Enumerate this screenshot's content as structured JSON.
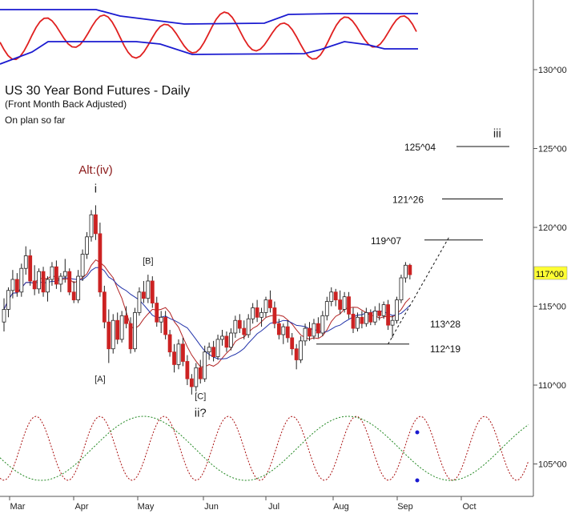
{
  "chart_data": {
    "type": "candlestick",
    "title": "US 30 Year Bond Futures - Daily",
    "subtitle": "(Front Month Back Adjusted)",
    "note": "On plan so far",
    "price_axis": {
      "min": 103,
      "max": 132,
      "ticks": [
        "130^00",
        "125^00",
        "120^00",
        "115^00",
        "110^00",
        "105^00"
      ],
      "tick_values": [
        130,
        125,
        120,
        115,
        110,
        105
      ],
      "current_price_label": "117^00",
      "current_price": 117
    },
    "x_axis": {
      "months": [
        "Mar",
        "Apr",
        "May",
        "Jun",
        "Jul",
        "Aug",
        "Sep",
        "Oct"
      ]
    },
    "wave_labels": [
      {
        "text": "Alt:(iv)",
        "day": 21,
        "price": 123.4,
        "color": "#8b1a1a"
      },
      {
        "text": "i",
        "day": 21,
        "price": 122.2,
        "color": "#222222"
      },
      {
        "text": "[B]",
        "day": 33,
        "price": 117.7,
        "color": "#222222"
      },
      {
        "text": "[A]",
        "day": 22,
        "price": 110.2,
        "color": "#222222"
      },
      {
        "text": "[C]",
        "day": 45,
        "price": 109.1,
        "color": "#222222"
      },
      {
        "text": "ii?",
        "day": 45,
        "price": 108.0,
        "color": "#222222"
      },
      {
        "text": "iii",
        "day": 113,
        "price": 125.7,
        "color": "#222222"
      }
    ],
    "targets": [
      {
        "label": "125^04",
        "value": 125.13
      },
      {
        "label": "121^26",
        "value": 121.8
      },
      {
        "label": "119^07",
        "value": 119.2
      }
    ],
    "support_levels": [
      {
        "label": "113^28",
        "value": 113.9
      },
      {
        "label": "112^19",
        "value": 112.6
      }
    ],
    "candles": [
      [
        0,
        114.0,
        115.5,
        113.4,
        114.8
      ],
      [
        1,
        114.8,
        116.2,
        114.3,
        116.0
      ],
      [
        2,
        116.0,
        117.3,
        115.5,
        116.7
      ],
      [
        3,
        116.7,
        117.1,
        115.6,
        115.9
      ],
      [
        4,
        115.9,
        117.7,
        115.6,
        117.4
      ],
      [
        5,
        117.4,
        118.8,
        117.0,
        118.2
      ],
      [
        6,
        118.2,
        118.6,
        116.3,
        116.6
      ],
      [
        7,
        116.6,
        117.6,
        115.7,
        116.1
      ],
      [
        8,
        116.1,
        117.4,
        115.8,
        117.2
      ],
      [
        9,
        117.2,
        117.5,
        115.6,
        115.9
      ],
      [
        10,
        115.9,
        116.9,
        115.3,
        116.7
      ],
      [
        11,
        116.7,
        117.8,
        116.3,
        117.5
      ],
      [
        12,
        117.5,
        117.9,
        116.1,
        116.4
      ],
      [
        13,
        116.4,
        117.1,
        115.9,
        116.9
      ],
      [
        14,
        116.9,
        118.0,
        116.5,
        117.2
      ],
      [
        15,
        117.2,
        117.4,
        115.7,
        115.9
      ],
      [
        16,
        115.9,
        116.6,
        115.2,
        115.4
      ],
      [
        17,
        115.4,
        117.3,
        115.2,
        116.9
      ],
      [
        18,
        116.9,
        118.6,
        116.6,
        118.3
      ],
      [
        19,
        118.3,
        119.7,
        118.0,
        119.4
      ],
      [
        20,
        119.4,
        121.1,
        119.1,
        120.8
      ],
      [
        21,
        120.8,
        121.4,
        119.2,
        119.6
      ],
      [
        22,
        119.6,
        120.3,
        115.6,
        115.9
      ],
      [
        23,
        115.9,
        116.3,
        113.6,
        114.0
      ],
      [
        24,
        114.0,
        114.8,
        111.4,
        112.3
      ],
      [
        25,
        112.3,
        114.5,
        112.0,
        114.1
      ],
      [
        26,
        114.1,
        114.6,
        112.6,
        112.9
      ],
      [
        27,
        112.9,
        114.7,
        112.7,
        114.4
      ],
      [
        28,
        114.4,
        115.0,
        113.6,
        113.9
      ],
      [
        29,
        113.9,
        114.3,
        112.0,
        112.3
      ],
      [
        30,
        112.3,
        114.9,
        112.1,
        114.6
      ],
      [
        31,
        114.6,
        116.2,
        114.4,
        115.9
      ],
      [
        32,
        115.9,
        116.6,
        115.2,
        115.5
      ],
      [
        33,
        115.5,
        117.0,
        115.2,
        116.6
      ],
      [
        34,
        116.6,
        116.9,
        114.9,
        115.2
      ],
      [
        35,
        115.2,
        115.6,
        113.7,
        114.0
      ],
      [
        36,
        114.0,
        114.7,
        113.3,
        114.3
      ],
      [
        37,
        114.3,
        114.7,
        112.9,
        113.2
      ],
      [
        38,
        113.2,
        113.5,
        111.8,
        112.1
      ],
      [
        39,
        112.1,
        112.6,
        110.8,
        111.3
      ],
      [
        40,
        111.3,
        112.9,
        111.0,
        112.6
      ],
      [
        41,
        112.6,
        113.0,
        111.2,
        111.5
      ],
      [
        42,
        111.5,
        111.9,
        110.0,
        110.4
      ],
      [
        43,
        110.4,
        110.7,
        109.4,
        109.9
      ],
      [
        44,
        109.9,
        111.4,
        109.6,
        111.1
      ],
      [
        45,
        111.1,
        111.6,
        110.1,
        110.4
      ],
      [
        46,
        110.4,
        112.5,
        110.2,
        112.1
      ],
      [
        47,
        112.1,
        112.7,
        111.6,
        112.4
      ],
      [
        48,
        112.4,
        112.8,
        111.5,
        111.8
      ],
      [
        49,
        111.8,
        113.2,
        111.6,
        112.9
      ],
      [
        50,
        112.9,
        113.5,
        112.5,
        113.1
      ],
      [
        51,
        113.1,
        113.4,
        112.1,
        112.4
      ],
      [
        52,
        112.4,
        113.6,
        112.2,
        113.3
      ],
      [
        53,
        113.3,
        114.4,
        113.0,
        114.1
      ],
      [
        54,
        114.1,
        114.5,
        113.3,
        113.6
      ],
      [
        55,
        113.6,
        114.1,
        112.9,
        113.2
      ],
      [
        56,
        113.2,
        114.5,
        113.0,
        114.2
      ],
      [
        57,
        114.2,
        115.2,
        113.9,
        114.9
      ],
      [
        58,
        114.9,
        115.4,
        114.0,
        114.3
      ],
      [
        59,
        114.3,
        114.9,
        113.7,
        114.6
      ],
      [
        60,
        114.6,
        115.6,
        114.3,
        115.4
      ],
      [
        61,
        115.4,
        116.0,
        114.6,
        114.9
      ],
      [
        62,
        114.9,
        115.3,
        113.6,
        113.9
      ],
      [
        63,
        113.9,
        114.2,
        112.9,
        113.2
      ],
      [
        64,
        113.2,
        113.9,
        112.6,
        113.7
      ],
      [
        65,
        113.7,
        114.1,
        112.7,
        113.0
      ],
      [
        66,
        113.0,
        113.3,
        111.9,
        112.3
      ],
      [
        67,
        112.3,
        112.6,
        111.0,
        111.6
      ],
      [
        68,
        111.6,
        113.1,
        111.4,
        112.8
      ],
      [
        69,
        112.8,
        113.9,
        112.5,
        113.6
      ],
      [
        70,
        113.6,
        114.0,
        112.8,
        113.1
      ],
      [
        71,
        113.1,
        114.2,
        112.9,
        113.9
      ],
      [
        72,
        113.9,
        114.3,
        113.0,
        113.3
      ],
      [
        73,
        113.3,
        114.7,
        113.1,
        114.4
      ],
      [
        74,
        114.4,
        115.6,
        114.1,
        115.3
      ],
      [
        75,
        115.3,
        116.2,
        115.0,
        115.9
      ],
      [
        76,
        115.9,
        116.1,
        115.0,
        115.4
      ],
      [
        77,
        115.4,
        116.0,
        114.5,
        114.8
      ],
      [
        78,
        114.8,
        115.9,
        114.6,
        115.6
      ],
      [
        79,
        115.6,
        115.9,
        114.2,
        114.5
      ],
      [
        80,
        114.5,
        114.9,
        113.3,
        113.6
      ],
      [
        81,
        113.6,
        114.6,
        113.4,
        114.3
      ],
      [
        82,
        114.3,
        114.7,
        113.6,
        113.9
      ],
      [
        83,
        113.9,
        114.9,
        113.7,
        114.6
      ],
      [
        84,
        114.6,
        114.8,
        113.8,
        114.0
      ],
      [
        85,
        114.0,
        115.0,
        113.8,
        114.7
      ],
      [
        86,
        114.7,
        115.2,
        114.1,
        114.4
      ],
      [
        87,
        114.4,
        115.3,
        114.2,
        115.1
      ],
      [
        88,
        115.1,
        115.4,
        113.5,
        113.8
      ],
      [
        89,
        113.8,
        114.4,
        113.0,
        114.1
      ],
      [
        90,
        114.1,
        115.6,
        113.9,
        115.4
      ],
      [
        91,
        115.4,
        117.0,
        115.2,
        116.8
      ],
      [
        92,
        116.8,
        117.8,
        116.5,
        117.6
      ],
      [
        93,
        117.6,
        117.7,
        116.7,
        117.0
      ]
    ],
    "projection": [
      [
        88,
        112.6
      ],
      [
        102,
        119.4
      ]
    ]
  }
}
